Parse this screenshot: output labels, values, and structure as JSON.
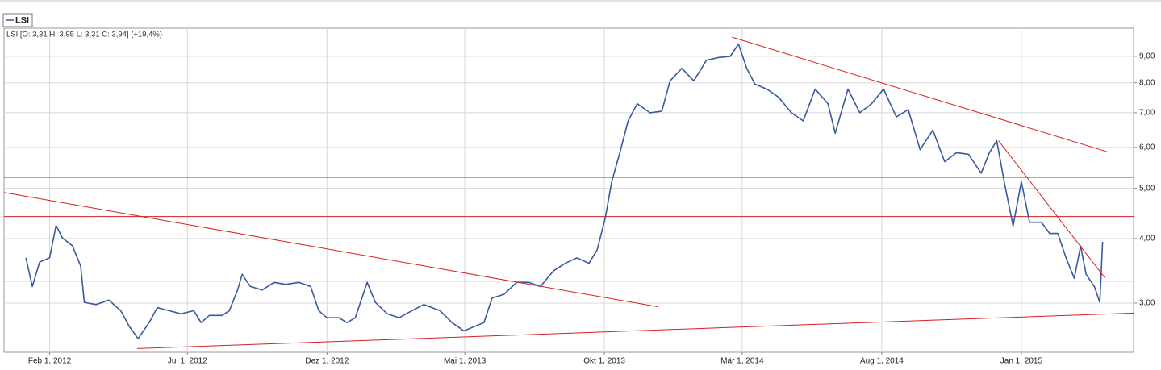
{
  "chart_data": {
    "type": "line",
    "subtitle": "LSI [O: 3,31  H: 3,95  L: 3,31  C: 3,94] (+19,4%)",
    "log_scale": true,
    "grid": true,
    "xlim": [
      "2011-12-13",
      "2015-05-04"
    ],
    "xticks": [
      {
        "value": "2012-02-01",
        "label": "Feb 1, 2012"
      },
      {
        "value": "2012-07-01",
        "label": "Jul 1, 2012"
      },
      {
        "value": "2012-12-01",
        "label": "Dez 1, 2012"
      },
      {
        "value": "2013-05-01",
        "label": "Mai 1, 2013"
      },
      {
        "value": "2013-10-01",
        "label": "Okt 1, 2013"
      },
      {
        "value": "2014-03-01",
        "label": "Mär 1, 2014"
      },
      {
        "value": "2014-08-01",
        "label": "Aug 1, 2014"
      },
      {
        "value": "2015-01-01",
        "label": "Jan 1, 2015"
      }
    ],
    "ylim": [
      2.41,
      10.2
    ],
    "yticks": [
      {
        "value": 3,
        "label": "3,00"
      },
      {
        "value": 4,
        "label": "4,00"
      },
      {
        "value": 5,
        "label": "5,00"
      },
      {
        "value": 6,
        "label": "6,00"
      },
      {
        "value": 7,
        "label": "7,00"
      },
      {
        "value": 8,
        "label": "8,00"
      },
      {
        "value": 9,
        "label": "9,00"
      }
    ],
    "x": [
      "2012-01-06",
      "2012-01-13",
      "2012-01-21",
      "2012-02-01",
      "2012-02-08",
      "2012-02-15",
      "2012-02-26",
      "2012-03-06",
      "2012-03-10",
      "2012-03-23",
      "2012-04-06",
      "2012-04-19",
      "2012-04-28",
      "2012-05-08",
      "2012-05-20",
      "2012-05-29",
      "2012-06-11",
      "2012-06-24",
      "2012-07-08",
      "2012-07-16",
      "2012-07-25",
      "2012-08-08",
      "2012-08-16",
      "2012-08-25",
      "2012-08-30",
      "2012-09-08",
      "2012-09-21",
      "2012-10-04",
      "2012-10-17",
      "2012-10-31",
      "2012-11-13",
      "2012-11-22",
      "2012-12-01",
      "2012-12-14",
      "2012-12-23",
      "2013-01-01",
      "2013-01-14",
      "2013-01-23",
      "2013-02-05",
      "2013-02-18",
      "2013-03-04",
      "2013-03-17",
      "2013-04-04",
      "2013-04-17",
      "2013-04-30",
      "2013-05-13",
      "2013-05-22",
      "2013-05-31",
      "2013-06-13",
      "2013-06-27",
      "2013-07-10",
      "2013-07-23",
      "2013-08-06",
      "2013-08-19",
      "2013-09-01",
      "2013-09-14",
      "2013-09-23",
      "2013-10-02",
      "2013-10-09",
      "2013-10-18",
      "2013-10-27",
      "2013-11-06",
      "2013-11-20",
      "2013-12-03",
      "2013-12-12",
      "2013-12-25",
      "2014-01-07",
      "2014-01-21",
      "2014-02-03",
      "2014-02-16",
      "2014-02-25",
      "2014-03-06",
      "2014-03-15",
      "2014-03-28",
      "2014-04-10",
      "2014-04-24",
      "2014-05-07",
      "2014-05-20",
      "2014-06-03",
      "2014-06-11",
      "2014-06-25",
      "2014-07-08",
      "2014-07-21",
      "2014-08-03",
      "2014-08-17",
      "2014-08-30",
      "2014-09-12",
      "2014-09-26",
      "2014-10-09",
      "2014-10-22",
      "2014-11-04",
      "2014-11-18",
      "2014-11-27",
      "2014-12-05",
      "2014-12-14",
      "2014-12-23",
      "2015-01-01",
      "2015-01-10",
      "2015-01-23",
      "2015-02-01",
      "2015-02-10",
      "2015-02-19",
      "2015-02-28",
      "2015-03-07",
      "2015-03-13",
      "2015-03-22",
      "2015-03-28",
      "2015-03-31"
    ],
    "series": [
      {
        "name": "LSI",
        "color": "#3a5a9c",
        "values": [
          3.67,
          3.23,
          3.6,
          3.67,
          4.24,
          4.01,
          3.87,
          3.54,
          3.01,
          2.98,
          3.04,
          2.9,
          2.71,
          2.56,
          2.75,
          2.94,
          2.9,
          2.86,
          2.9,
          2.75,
          2.84,
          2.84,
          2.9,
          3.18,
          3.41,
          3.23,
          3.18,
          3.29,
          3.26,
          3.29,
          3.23,
          2.9,
          2.81,
          2.81,
          2.75,
          2.81,
          3.29,
          3.01,
          2.86,
          2.81,
          2.9,
          2.98,
          2.9,
          2.75,
          2.65,
          2.71,
          2.75,
          3.07,
          3.12,
          3.29,
          3.29,
          3.23,
          3.46,
          3.58,
          3.67,
          3.58,
          3.8,
          4.38,
          5.15,
          5.86,
          6.75,
          7.29,
          7.0,
          7.05,
          8.07,
          8.53,
          8.07,
          8.85,
          8.95,
          9.0,
          9.51,
          8.53,
          7.95,
          7.78,
          7.5,
          7.0,
          6.75,
          7.78,
          7.29,
          6.39,
          7.78,
          7.0,
          7.29,
          7.78,
          6.87,
          7.1,
          5.94,
          6.48,
          5.63,
          5.86,
          5.82,
          5.35,
          5.86,
          6.18,
          5.07,
          4.23,
          5.15,
          4.3,
          4.3,
          4.09,
          4.09,
          3.67,
          3.35,
          3.87,
          3.41,
          3.23,
          3.01,
          3.94
        ]
      }
    ],
    "reference_lines": {
      "color": "#d62020",
      "values": [
        5.25,
        4.41,
        3.31
      ]
    },
    "trend_lines": [
      {
        "x": [
          "2011-12-13",
          "2013-11-29"
        ],
        "values": [
          4.91,
          2.95
        ]
      },
      {
        "x": [
          "2012-05-07",
          "2015-05-04"
        ],
        "values": [
          2.45,
          2.87
        ]
      },
      {
        "x": [
          "2014-02-18",
          "2015-04-07"
        ],
        "values": [
          9.8,
          5.87
        ]
      },
      {
        "x": [
          "2014-12-07",
          "2015-04-03"
        ],
        "values": [
          6.18,
          3.35
        ]
      }
    ]
  }
}
